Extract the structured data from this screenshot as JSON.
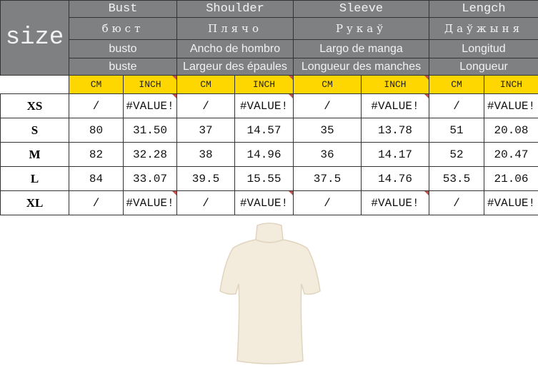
{
  "size_label": "size",
  "groups": [
    {
      "en": "Bust",
      "ru": "бюст",
      "es": "busto",
      "fr": "buste"
    },
    {
      "en": "Shoulder",
      "ru": "Плячо",
      "es": "Ancho de hombro",
      "fr": "Largeur des épaules"
    },
    {
      "en": "Sleeve",
      "ru": "Рукаў",
      "es": "Largo de manga",
      "fr": "Longueur des manches"
    },
    {
      "en": "Lengch",
      "ru": "Даўжыня",
      "es": "Longitud",
      "fr": "Longueur"
    }
  ],
  "units": {
    "cm": "CM",
    "inch": "INCH"
  },
  "rows": [
    {
      "size": "XS",
      "values": [
        "/",
        "#VALUE!",
        "/",
        "#VALUE!",
        "/",
        "#VALUE!",
        "/",
        "#VALUE!"
      ]
    },
    {
      "size": "S",
      "values": [
        "80",
        "31.50",
        "37",
        "14.57",
        "35",
        "13.78",
        "51",
        "20.08"
      ]
    },
    {
      "size": "M",
      "values": [
        "82",
        "32.28",
        "38",
        "14.96",
        "36",
        "14.17",
        "52",
        "20.47"
      ]
    },
    {
      "size": "L",
      "values": [
        "84",
        "33.07",
        "39.5",
        "15.55",
        "37.5",
        "14.76",
        "53.5",
        "21.06"
      ]
    },
    {
      "size": "XL",
      "values": [
        "/",
        "#VALUE!",
        "/",
        "#VALUE!",
        "/",
        "#VALUE!",
        "/",
        "#VALUE!"
      ]
    }
  ],
  "colors": {
    "header": "#7e8082",
    "units_row": "#ffd700",
    "garment": "#f3ebdc"
  }
}
